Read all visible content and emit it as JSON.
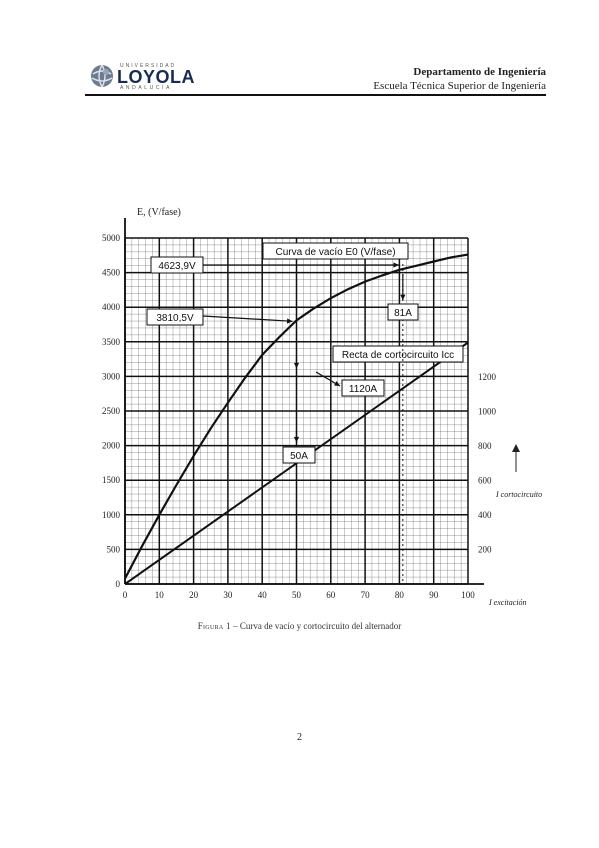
{
  "header": {
    "logo_top": "UNIVERSIDAD",
    "logo_name": "LOYOLA",
    "logo_bottom": "ANDALUCÍA",
    "department": "Departamento de Ingeniería",
    "school": "Escuela Técnica Superior de Ingeniería"
  },
  "figure": {
    "caption_label": "Figura 1",
    "caption_text": " – Curva de vacío y cortocircuito del alternador",
    "ylabel_left": "E, (V/fase)",
    "xlabel": "I excitación",
    "ylabel_right": "I cortocircuito"
  },
  "chart_data": {
    "type": "line",
    "xlabel": "I excitación",
    "ylabel": "E, (V/fase)",
    "y2label": "I cortocircuito",
    "xlim": [
      0,
      100
    ],
    "ylim": [
      0,
      5000
    ],
    "y2lim": [
      0,
      1400
    ],
    "x_ticks": [
      0,
      10,
      20,
      30,
      40,
      50,
      60,
      70,
      80,
      90,
      100
    ],
    "y_ticks": [
      0,
      500,
      1000,
      1500,
      2000,
      2500,
      3000,
      3500,
      4000,
      4500,
      5000
    ],
    "y2_ticks": [
      200,
      400,
      600,
      800,
      1000,
      1200
    ],
    "grid": true,
    "series": [
      {
        "name": "Curva de vacío E0 (V/fase)",
        "axis": "left",
        "x": [
          0,
          5,
          10,
          15,
          20,
          25,
          30,
          35,
          40,
          45,
          50,
          55,
          60,
          65,
          70,
          75,
          80,
          85,
          90,
          95,
          100
        ],
        "y": [
          80,
          550,
          1000,
          1430,
          1850,
          2250,
          2620,
          2980,
          3310,
          3570,
          3810,
          3980,
          4130,
          4260,
          4370,
          4460,
          4540,
          4600,
          4660,
          4720,
          4760
        ]
      },
      {
        "name": "Recta de cortocircuito Icc",
        "axis": "right",
        "x": [
          0,
          100
        ],
        "y": [
          0,
          1400
        ]
      }
    ],
    "annotations": [
      {
        "text": "4623,9V",
        "x": 81,
        "y": 4623.9
      },
      {
        "text": "3810,5V",
        "x": 50,
        "y": 3810.5
      },
      {
        "text": "81A",
        "x": 81
      },
      {
        "text": "50A",
        "x": 50
      },
      {
        "text": "1120A",
        "x": 80,
        "y2": 1120
      }
    ]
  }
}
